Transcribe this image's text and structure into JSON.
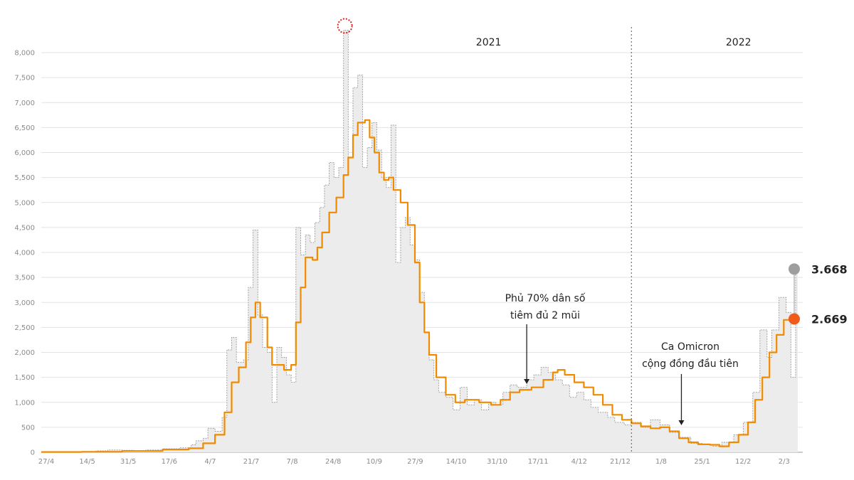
{
  "chart_data": {
    "type": "area",
    "title": "",
    "xlabel": "",
    "ylabel": "",
    "ylim": [
      0,
      8000
    ],
    "grid": true,
    "y_ticks": [
      "0",
      "500",
      "1,000",
      "1,500",
      "2,000",
      "2,500",
      "3,000",
      "3,500",
      "4,000",
      "4,500",
      "5,000",
      "5,500",
      "6,000",
      "6,500",
      "7,000",
      "7,500",
      "8,000"
    ],
    "x_ticks": [
      "27/4",
      "14/5",
      "31/5",
      "17/6",
      "4/7",
      "21/7",
      "7/8",
      "24/8",
      "10/9",
      "27/9",
      "14/10",
      "31/10",
      "17/11",
      "4/12",
      "21/12",
      "1/8",
      "25/1",
      "12/2",
      "2/3"
    ],
    "year_labels": [
      {
        "label": "2021",
        "x": "2021-11-01"
      },
      {
        "label": "2022",
        "x": "2022-02-14"
      }
    ],
    "year_divider": "2021-12-31",
    "peak_marker": "2021-09-01",
    "series": [
      {
        "role": "daily",
        "color": "#9a9a9a",
        "fill": "#ececec",
        "points": [
          [
            "2021-04-27",
            5
          ],
          [
            "2021-05-05",
            10
          ],
          [
            "2021-05-14",
            15
          ],
          [
            "2021-05-20",
            30
          ],
          [
            "2021-05-25",
            45
          ],
          [
            "2021-05-31",
            40
          ],
          [
            "2021-06-05",
            30
          ],
          [
            "2021-06-10",
            45
          ],
          [
            "2021-06-17",
            70
          ],
          [
            "2021-06-24",
            90
          ],
          [
            "2021-06-29",
            150
          ],
          [
            "2021-07-01",
            230
          ],
          [
            "2021-07-04",
            280
          ],
          [
            "2021-07-06",
            480
          ],
          [
            "2021-07-09",
            420
          ],
          [
            "2021-07-12",
            700
          ],
          [
            "2021-07-14",
            2050
          ],
          [
            "2021-07-16",
            2300
          ],
          [
            "2021-07-18",
            1800
          ],
          [
            "2021-07-21",
            1850
          ],
          [
            "2021-07-23",
            3300
          ],
          [
            "2021-07-25",
            4450
          ],
          [
            "2021-07-27",
            2750
          ],
          [
            "2021-07-29",
            2100
          ],
          [
            "2021-07-31",
            2000
          ],
          [
            "2021-08-02",
            1000
          ],
          [
            "2021-08-04",
            2100
          ],
          [
            "2021-08-06",
            1900
          ],
          [
            "2021-08-08",
            1550
          ],
          [
            "2021-08-10",
            1400
          ],
          [
            "2021-08-12",
            4500
          ],
          [
            "2021-08-14",
            3950
          ],
          [
            "2021-08-16",
            4350
          ],
          [
            "2021-08-18",
            4200
          ],
          [
            "2021-08-20",
            4600
          ],
          [
            "2021-08-22",
            4900
          ],
          [
            "2021-08-24",
            5350
          ],
          [
            "2021-08-26",
            5800
          ],
          [
            "2021-08-28",
            5500
          ],
          [
            "2021-08-30",
            5700
          ],
          [
            "2021-09-01",
            8450
          ],
          [
            "2021-09-03",
            5900
          ],
          [
            "2021-09-05",
            7300
          ],
          [
            "2021-09-07",
            7550
          ],
          [
            "2021-09-09",
            5700
          ],
          [
            "2021-09-11",
            6100
          ],
          [
            "2021-09-13",
            6600
          ],
          [
            "2021-09-15",
            6050
          ],
          [
            "2021-09-17",
            5500
          ],
          [
            "2021-09-19",
            5300
          ],
          [
            "2021-09-21",
            6550
          ],
          [
            "2021-09-23",
            3800
          ],
          [
            "2021-09-25",
            4500
          ],
          [
            "2021-09-27",
            4700
          ],
          [
            "2021-09-29",
            4150
          ],
          [
            "2021-10-01",
            3850
          ],
          [
            "2021-10-03",
            3200
          ],
          [
            "2021-10-05",
            2400
          ],
          [
            "2021-10-07",
            1850
          ],
          [
            "2021-10-09",
            1450
          ],
          [
            "2021-10-11",
            1200
          ],
          [
            "2021-10-14",
            1100
          ],
          [
            "2021-10-17",
            850
          ],
          [
            "2021-10-20",
            1300
          ],
          [
            "2021-10-23",
            950
          ],
          [
            "2021-10-26",
            1050
          ],
          [
            "2021-10-29",
            850
          ],
          [
            "2021-11-01",
            1000
          ],
          [
            "2021-11-04",
            950
          ],
          [
            "2021-11-07",
            1200
          ],
          [
            "2021-11-10",
            1350
          ],
          [
            "2021-11-13",
            1300
          ],
          [
            "2021-11-17",
            1450
          ],
          [
            "2021-11-20",
            1550
          ],
          [
            "2021-11-23",
            1700
          ],
          [
            "2021-11-26",
            1600
          ],
          [
            "2021-11-29",
            1450
          ],
          [
            "2021-12-02",
            1350
          ],
          [
            "2021-12-05",
            1100
          ],
          [
            "2021-12-08",
            1200
          ],
          [
            "2021-12-11",
            1050
          ],
          [
            "2021-12-14",
            900
          ],
          [
            "2021-12-17",
            800
          ],
          [
            "2021-12-21",
            700
          ],
          [
            "2021-12-24",
            600
          ],
          [
            "2021-12-28",
            550
          ],
          [
            "2021-12-31",
            600
          ],
          [
            "2022-01-04",
            500
          ],
          [
            "2022-01-08",
            650
          ],
          [
            "2022-01-12",
            550
          ],
          [
            "2022-01-16",
            400
          ],
          [
            "2022-01-20",
            300
          ],
          [
            "2022-01-25",
            180
          ],
          [
            "2022-01-30",
            150
          ],
          [
            "2022-02-03",
            120
          ],
          [
            "2022-02-07",
            200
          ],
          [
            "2022-02-12",
            350
          ],
          [
            "2022-02-16",
            600
          ],
          [
            "2022-02-20",
            1200
          ],
          [
            "2022-02-23",
            2450
          ],
          [
            "2022-02-26",
            1900
          ],
          [
            "2022-02-28",
            2450
          ],
          [
            "2022-03-03",
            3100
          ],
          [
            "2022-03-06",
            2800
          ],
          [
            "2022-03-08",
            1500
          ],
          [
            "2022-03-10",
            3668
          ]
        ]
      },
      {
        "role": "average",
        "color": "#f08a00",
        "points": [
          [
            "2021-04-27",
            5
          ],
          [
            "2021-05-14",
            10
          ],
          [
            "2021-05-31",
            25
          ],
          [
            "2021-06-17",
            55
          ],
          [
            "2021-06-28",
            80
          ],
          [
            "2021-07-04",
            180
          ],
          [
            "2021-07-09",
            350
          ],
          [
            "2021-07-13",
            800
          ],
          [
            "2021-07-16",
            1400
          ],
          [
            "2021-07-19",
            1700
          ],
          [
            "2021-07-22",
            2200
          ],
          [
            "2021-07-24",
            2700
          ],
          [
            "2021-07-26",
            3000
          ],
          [
            "2021-07-28",
            2700
          ],
          [
            "2021-07-31",
            2100
          ],
          [
            "2021-08-02",
            1750
          ],
          [
            "2021-08-04",
            1750
          ],
          [
            "2021-08-07",
            1650
          ],
          [
            "2021-08-10",
            1750
          ],
          [
            "2021-08-12",
            2600
          ],
          [
            "2021-08-14",
            3300
          ],
          [
            "2021-08-16",
            3900
          ],
          [
            "2021-08-19",
            3850
          ],
          [
            "2021-08-21",
            4100
          ],
          [
            "2021-08-23",
            4400
          ],
          [
            "2021-08-26",
            4800
          ],
          [
            "2021-08-29",
            5100
          ],
          [
            "2021-09-01",
            5550
          ],
          [
            "2021-09-03",
            5900
          ],
          [
            "2021-09-05",
            6350
          ],
          [
            "2021-09-07",
            6600
          ],
          [
            "2021-09-10",
            6650
          ],
          [
            "2021-09-12",
            6300
          ],
          [
            "2021-09-14",
            6000
          ],
          [
            "2021-09-16",
            5600
          ],
          [
            "2021-09-18",
            5450
          ],
          [
            "2021-09-20",
            5500
          ],
          [
            "2021-09-22",
            5250
          ],
          [
            "2021-09-25",
            5000
          ],
          [
            "2021-09-28",
            4550
          ],
          [
            "2021-10-01",
            3800
          ],
          [
            "2021-10-03",
            3000
          ],
          [
            "2021-10-05",
            2400
          ],
          [
            "2021-10-07",
            1950
          ],
          [
            "2021-10-10",
            1500
          ],
          [
            "2021-10-14",
            1150
          ],
          [
            "2021-10-18",
            1000
          ],
          [
            "2021-10-22",
            1050
          ],
          [
            "2021-10-28",
            1000
          ],
          [
            "2021-11-02",
            950
          ],
          [
            "2021-11-06",
            1050
          ],
          [
            "2021-11-10",
            1200
          ],
          [
            "2021-11-14",
            1250
          ],
          [
            "2021-11-19",
            1300
          ],
          [
            "2021-11-24",
            1450
          ],
          [
            "2021-11-28",
            1600
          ],
          [
            "2021-11-30",
            1650
          ],
          [
            "2021-12-03",
            1550
          ],
          [
            "2021-12-07",
            1400
          ],
          [
            "2021-12-11",
            1300
          ],
          [
            "2021-12-15",
            1150
          ],
          [
            "2021-12-19",
            950
          ],
          [
            "2021-12-23",
            750
          ],
          [
            "2021-12-27",
            650
          ],
          [
            "2021-12-31",
            580
          ],
          [
            "2022-01-04",
            520
          ],
          [
            "2022-01-08",
            480
          ],
          [
            "2022-01-12",
            500
          ],
          [
            "2022-01-16",
            420
          ],
          [
            "2022-01-20",
            280
          ],
          [
            "2022-01-24",
            200
          ],
          [
            "2022-01-28",
            160
          ],
          [
            "2022-02-02",
            150
          ],
          [
            "2022-02-06",
            120
          ],
          [
            "2022-02-10",
            200
          ],
          [
            "2022-02-14",
            350
          ],
          [
            "2022-02-18",
            600
          ],
          [
            "2022-02-21",
            1050
          ],
          [
            "2022-02-24",
            1500
          ],
          [
            "2022-02-27",
            2000
          ],
          [
            "2022-03-02",
            2350
          ],
          [
            "2022-03-05",
            2650
          ],
          [
            "2022-03-08",
            2700
          ],
          [
            "2022-03-10",
            2669
          ]
        ]
      }
    ],
    "end_labels": [
      {
        "value": 3668,
        "text": "3.668",
        "color": "#9e9e9e"
      },
      {
        "value": 2669,
        "text": "2.669",
        "color": "#f05a1a"
      }
    ],
    "annotations": [
      {
        "lines": [
          "Phủ 70% dân số",
          "tiêm đủ 2 mũi"
        ],
        "date": "2021-11-17"
      },
      {
        "lines": [
          "Ca Omicron",
          "cộng đồng đầu tiên"
        ],
        "date": "2022-01-21"
      }
    ]
  }
}
